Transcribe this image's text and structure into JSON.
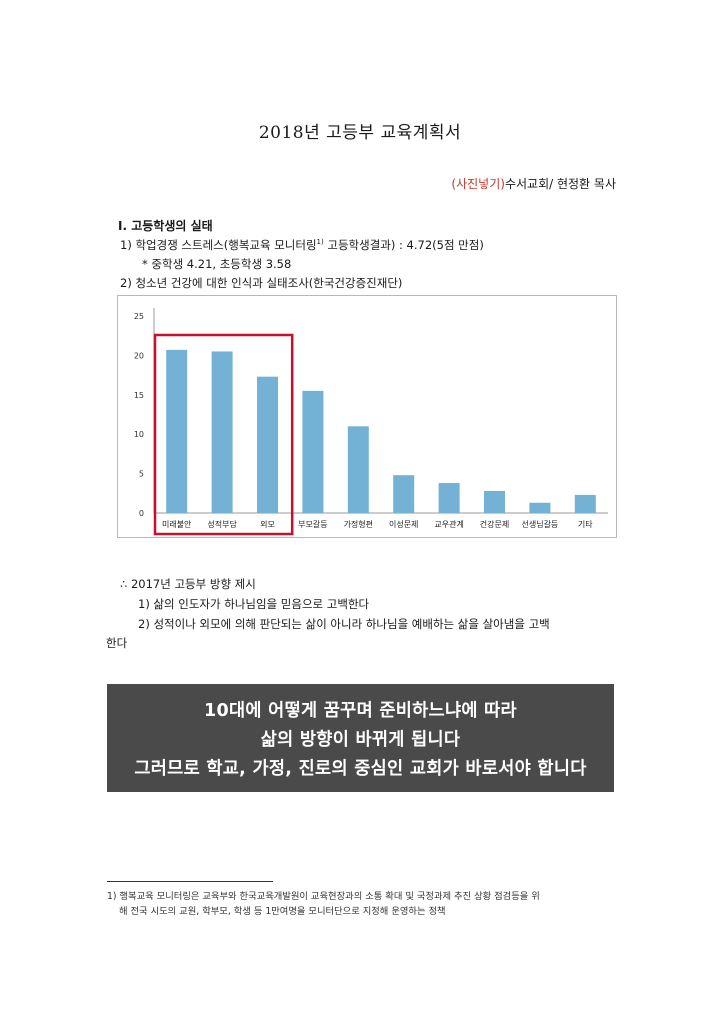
{
  "doc": {
    "title": "2018년 고등부 교육계획서",
    "author_photo": "(사진넣기)",
    "author_rest": "수서교회/ 현정환 목사",
    "section1": "Ⅰ. 고등학생의 실태",
    "item1_pre": "1) 학업경쟁 스트레스(행복교육 모니터링",
    "item1_sup": "1)",
    "item1_post": " 고등학생결과) : 4.72(5점 만점)",
    "item1_note": "* 중학생 4.21, 초등학생 3.58",
    "item2": "2) 청소년 건강에 대한 인식과 실태조사(한국건강증진재단)",
    "direction_title": "∴ 2017년 고등부 방향 제시",
    "direction_1": "1) 삶의 인도자가 하나님임을 믿음으로 고백한다",
    "direction_2a": "2) 성적이나 외모에 의해 판단되는 삶이 아니라 하나님을 예배하는 삶을 살아냄을 고백",
    "direction_2b": "한다",
    "banner_1": "10대에 어떻게 꿈꾸며 준비하느냐에 따라",
    "banner_2": "삶의 방향이 바뀌게 됩니다",
    "banner_3": "그러므로 학교, 가정, 진로의 중심인 교회가 바로서야 합니다",
    "footnote_1": "1) 행복교육 모니터링은 교육부와 한국교육개발원이 교육현장과의 소통 확대 및 국정과제 추진 상황 점검등을 위",
    "footnote_2": "해 전국 시도의 교원, 학부모, 학생 등 1만여명을 모니터단으로 지정해 운영하는 정책"
  },
  "chart_data": {
    "type": "bar",
    "categories": [
      "미래불안",
      "성적부담",
      "외모",
      "부모갈등",
      "가정형편",
      "이성문제",
      "교우관계",
      "건강문제",
      "선생님갈등",
      "기타"
    ],
    "values": [
      20.7,
      20.5,
      17.3,
      15.5,
      11.0,
      4.8,
      3.8,
      2.8,
      1.3,
      2.3
    ],
    "yticks": [
      0,
      5,
      10,
      15,
      20,
      25
    ],
    "ylim": [
      0,
      25
    ],
    "highlighted": [
      "미래불안",
      "성적부담",
      "외모"
    ],
    "bar_color": "#73b2d5",
    "highlight_color": "#c8102e",
    "grid": false,
    "legend": "none"
  }
}
